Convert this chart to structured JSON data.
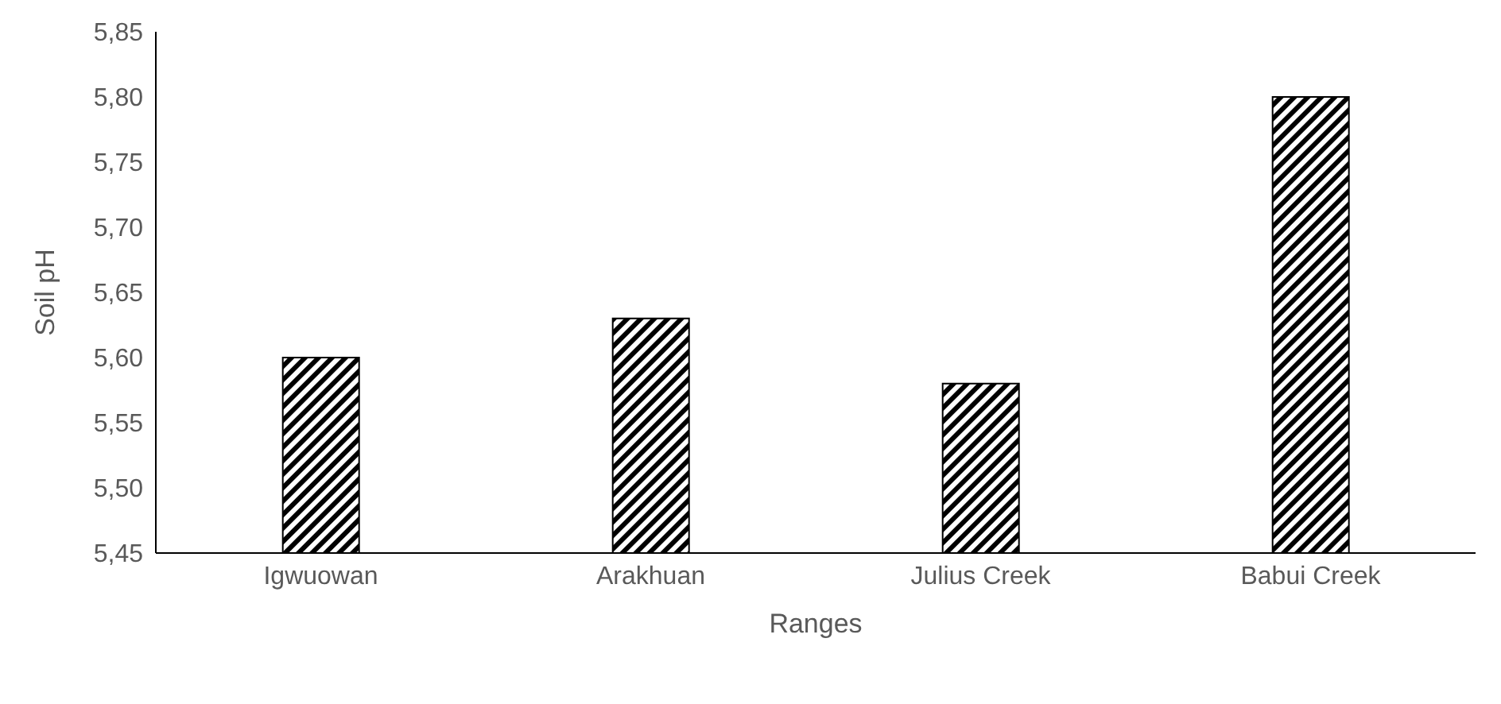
{
  "chart_data": {
    "type": "bar",
    "categories": [
      "Igwuowan",
      "Arakhuan",
      "Julius Creek",
      "Babui Creek"
    ],
    "values": [
      5.6,
      5.63,
      5.58,
      5.8
    ],
    "color": "#000000",
    "xlabel": "Ranges",
    "ylabel": "Soil pH",
    "ylim": [
      5.45,
      5.85
    ],
    "yticks": [
      {
        "value": 5.45,
        "label": "5,45"
      },
      {
        "value": 5.5,
        "label": "5,50"
      },
      {
        "value": 5.55,
        "label": "5,55"
      },
      {
        "value": 5.6,
        "label": "5,60"
      },
      {
        "value": 5.65,
        "label": "5,65"
      },
      {
        "value": 5.7,
        "label": "5,70"
      },
      {
        "value": 5.75,
        "label": "5,75"
      },
      {
        "value": 5.8,
        "label": "5,80"
      },
      {
        "value": 5.85,
        "label": "5,85"
      }
    ],
    "grid": false,
    "legend": false
  }
}
